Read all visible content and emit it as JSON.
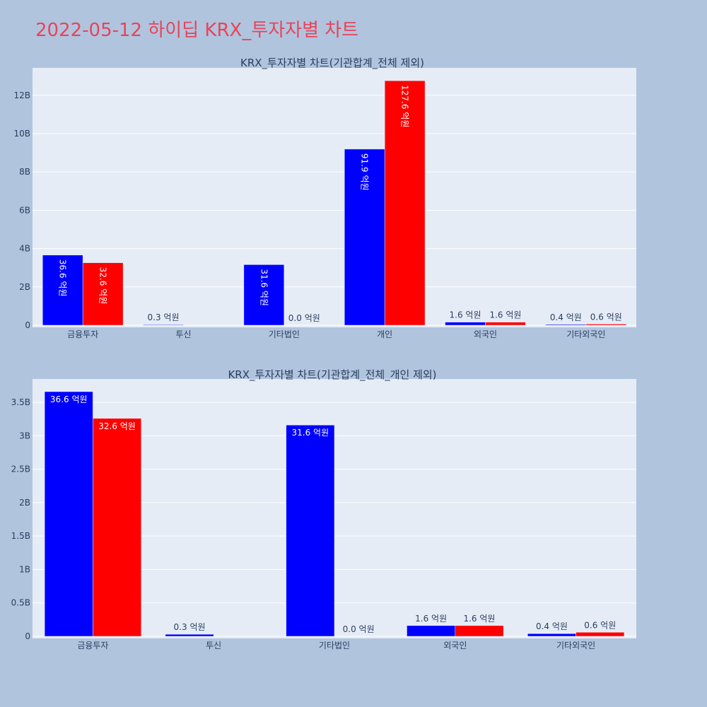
{
  "page": {
    "title": "2022-05-12 하이딥 KRX_투자자별 차트",
    "title_color": "#e8445a",
    "background": "#b0c4de",
    "plot_background": "#e5ecf6"
  },
  "chart_data": [
    {
      "type": "bar",
      "title": "KRX_투자자별 차트(기관합계_전체 제외)",
      "categories": [
        "금융투자",
        "투신",
        "기타법인",
        "개인",
        "외국인",
        "기타외국인"
      ],
      "series": [
        {
          "color": "#0000ff",
          "values": [
            3660000000,
            30000000,
            3160000000,
            9190000000,
            160000000,
            40000000
          ],
          "labels": [
            "36.6 억원",
            "0.3 억원",
            "31.6 억원",
            "91.9 억원",
            "1.6 억원",
            "0.4 억원"
          ]
        },
        {
          "color": "#ff0000",
          "values": [
            3260000000,
            0,
            0,
            12760000000,
            160000000,
            60000000
          ],
          "labels": [
            "32.6 억원",
            "",
            "0.0 억원",
            "127.6 억원",
            "1.6 억원",
            "0.6 억원"
          ]
        }
      ],
      "yticks": [
        0,
        2000000000,
        4000000000,
        6000000000,
        8000000000,
        10000000000,
        12000000000
      ],
      "ytick_labels": [
        "0",
        "2B",
        "4B",
        "6B",
        "8B",
        "10B",
        "12B"
      ],
      "ylim": [
        0,
        13430000000
      ],
      "label_style": "inside-vertical",
      "xlabel": "",
      "ylabel": "",
      "grid": true
    },
    {
      "type": "bar",
      "title": "KRX_투자자별 차트(기관합계_전체_개인 제외)",
      "categories": [
        "금융투자",
        "투신",
        "기타법인",
        "외국인",
        "기타외국인"
      ],
      "series": [
        {
          "color": "#0000ff",
          "values": [
            3660000000,
            30000000,
            3160000000,
            160000000,
            40000000
          ],
          "labels": [
            "36.6 억원",
            "0.3 억원",
            "31.6 억원",
            "1.6 억원",
            "0.4 억원"
          ]
        },
        {
          "color": "#ff0000",
          "values": [
            3260000000,
            0,
            0,
            160000000,
            60000000
          ],
          "labels": [
            "32.6 억원",
            "",
            "0.0 억원",
            "1.6 억원",
            "0.6 억원"
          ]
        }
      ],
      "yticks": [
        0,
        500000000,
        1000000000,
        1500000000,
        2000000000,
        2500000000,
        3000000000,
        3500000000
      ],
      "ytick_labels": [
        "0",
        "0.5B",
        "1B",
        "1.5B",
        "2B",
        "2.5B",
        "3B",
        "3.5B"
      ],
      "ylim": [
        0,
        3850000000
      ],
      "label_style": "inside-horizontal",
      "xlabel": "",
      "ylabel": "",
      "grid": true
    }
  ]
}
